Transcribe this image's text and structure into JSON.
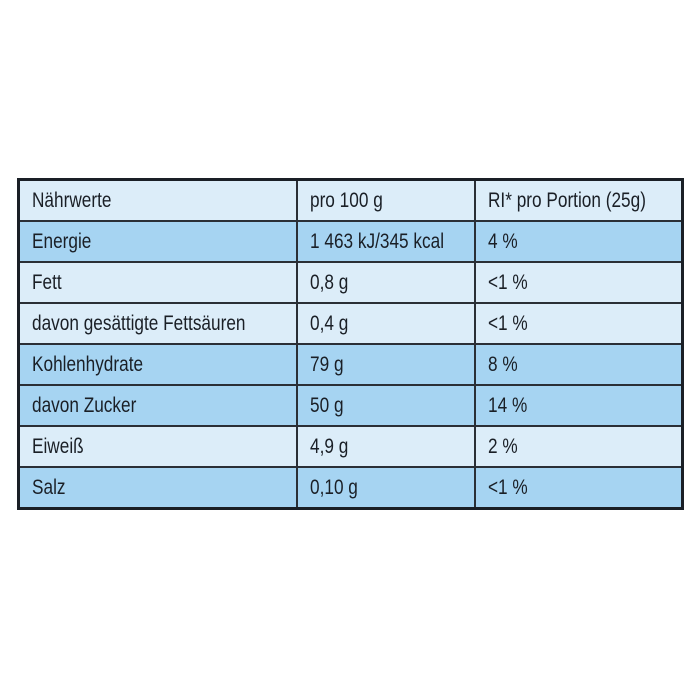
{
  "colors": {
    "light_row": "#dcedf9",
    "dark_row": "#a6d4f2",
    "border": "#1a1f26"
  },
  "header": [
    "Nährwerte",
    "pro 100 g",
    "RI* pro Portion (25g)"
  ],
  "rows": [
    {
      "shade": "dark",
      "cells": [
        "Energie",
        "1 463 kJ/345 kcal",
        "4 %"
      ]
    },
    {
      "shade": "light",
      "cells": [
        "Fett",
        "0,8 g",
        "<1 %"
      ]
    },
    {
      "shade": "light",
      "cells": [
        "davon gesättigte Fettsäuren",
        "0,4 g",
        "<1 %"
      ]
    },
    {
      "shade": "dark",
      "cells": [
        "Kohlenhydrate",
        "79 g",
        "8 %"
      ]
    },
    {
      "shade": "dark",
      "cells": [
        "davon Zucker",
        "50 g",
        "14 %"
      ]
    },
    {
      "shade": "light",
      "cells": [
        "Eiweiß",
        "4,9 g",
        "2 %"
      ]
    },
    {
      "shade": "dark",
      "cells": [
        "Salz",
        "0,10 g",
        "<1 %"
      ]
    }
  ]
}
